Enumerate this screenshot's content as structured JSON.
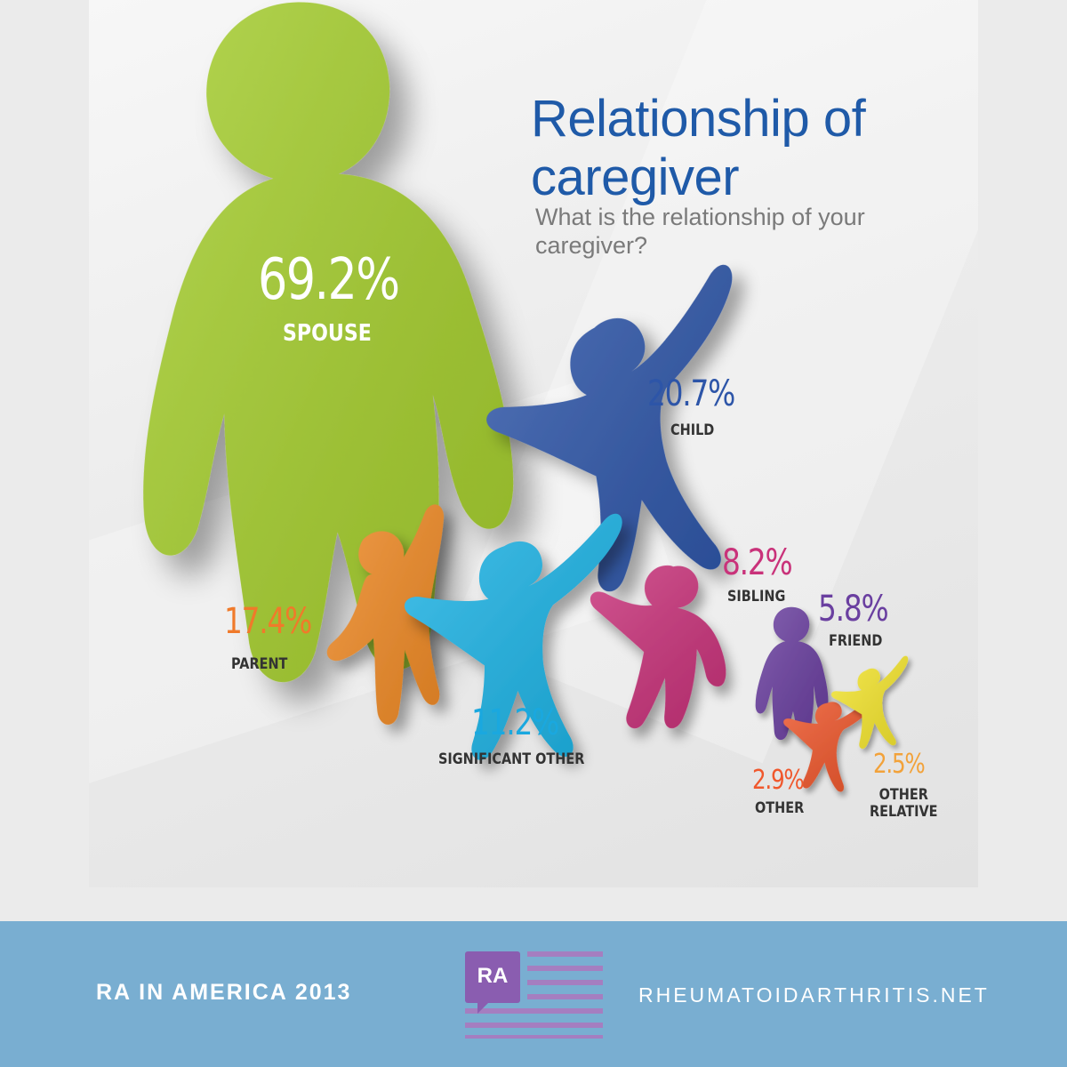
{
  "title": "Relationship of caregiver",
  "subtitle": "What is the relationship of your caregiver?",
  "chart_data": {
    "type": "bar",
    "title": "Relationship of caregiver",
    "subtitle": "What is the relationship of your caregiver?",
    "categories": [
      "SPOUSE",
      "CHILD",
      "PARENT",
      "SIGNIFICANT OTHER",
      "SIBLING",
      "FRIEND",
      "OTHER",
      "OTHER RELATIVE"
    ],
    "values": [
      69.2,
      20.7,
      17.4,
      11.2,
      8.2,
      5.8,
      2.9,
      2.5
    ],
    "labels": [
      "69.2%",
      "20.7%",
      "17.4%",
      "11.2%",
      "8.2%",
      "5.8%",
      "2.9%",
      "2.5%"
    ],
    "colors": [
      "#a6cf2e",
      "#2d55a8",
      "#f08a25",
      "#1db4e6",
      "#c9327a",
      "#6a3fa0",
      "#f0582d",
      "#f5e62e"
    ],
    "label_colors": [
      "#ffffff",
      "#2d55a8",
      "#f07a2a",
      "#1aa8df",
      "#c9327a",
      "#6a3fa0",
      "#f0582d",
      "#f2a23a"
    ]
  },
  "footer": {
    "left": "RA IN AMERICA 2013",
    "logo_text": "RA",
    "right": "RHEUMATOIDARTHRITIS.NET",
    "logo_color": "#8a5db0",
    "bar_color": "#79aed1"
  }
}
